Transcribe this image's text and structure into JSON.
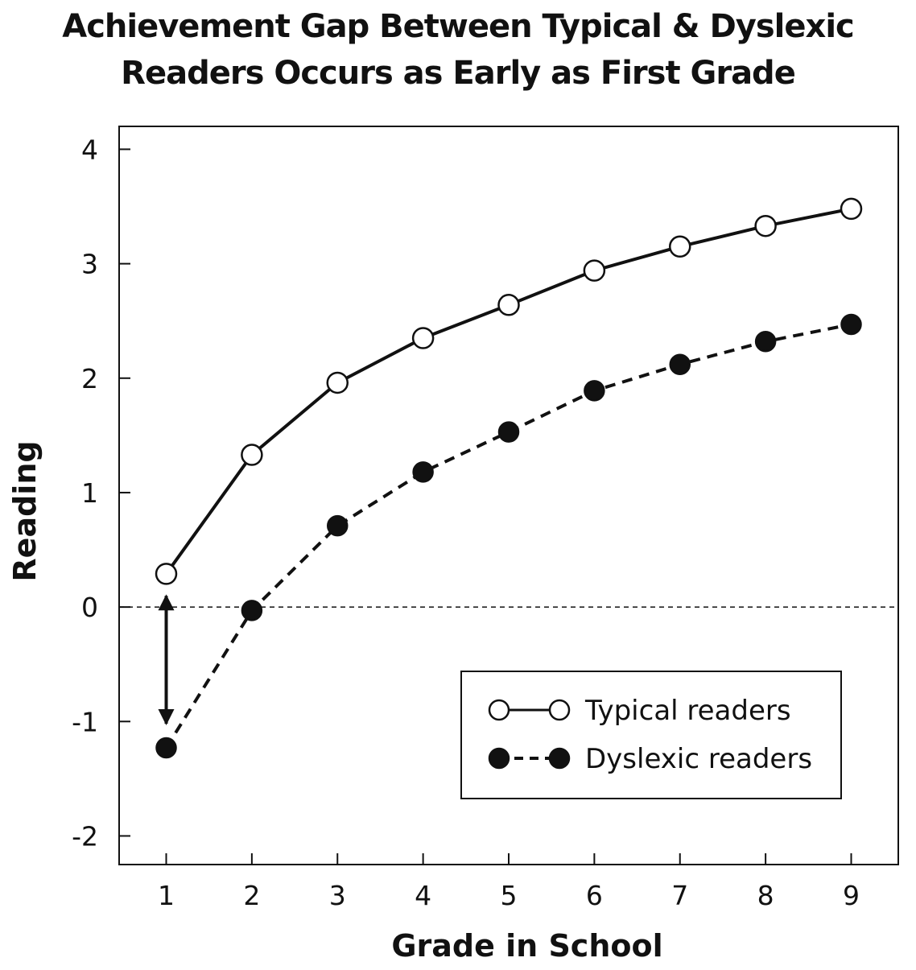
{
  "title_lines": [
    "Achievement Gap Between Typical & Dyslexic",
    "Readers Occurs as Early as First Grade"
  ],
  "chart_data": {
    "type": "line",
    "title": "Achievement Gap Between Typical & Dyslexic Readers Occurs as Early as First Grade",
    "xlabel": "Grade in School",
    "ylabel": "Reading",
    "x": [
      1,
      2,
      3,
      4,
      5,
      6,
      7,
      8,
      9
    ],
    "x_tick_labels": [
      "1",
      "2",
      "3",
      "4",
      "5",
      "6",
      "7",
      "8",
      "9"
    ],
    "y_ticks": [
      4,
      3,
      2,
      1,
      0,
      -1,
      -2
    ],
    "y_tick_labels": [
      "4",
      "3",
      "2",
      "1",
      "0",
      "-1",
      "-2"
    ],
    "xlim": [
      0.45,
      9.55
    ],
    "ylim": [
      -2.25,
      4.2
    ],
    "grid": false,
    "reference_line": {
      "y": 0,
      "style": "dashed"
    },
    "gap_arrow": {
      "x": 1,
      "from": 0.28,
      "to": -1.23
    },
    "legend_position": "bottom-right",
    "series": [
      {
        "name": "Typical readers",
        "marker": "open-circle",
        "line": "solid",
        "values": [
          0.29,
          1.33,
          1.96,
          2.35,
          2.64,
          2.94,
          3.15,
          3.33,
          3.48
        ]
      },
      {
        "name": "Dyslexic readers",
        "marker": "filled-circle",
        "line": "dashed",
        "values": [
          -1.23,
          -0.03,
          0.71,
          1.18,
          1.53,
          1.89,
          2.12,
          2.32,
          2.47
        ]
      }
    ]
  }
}
